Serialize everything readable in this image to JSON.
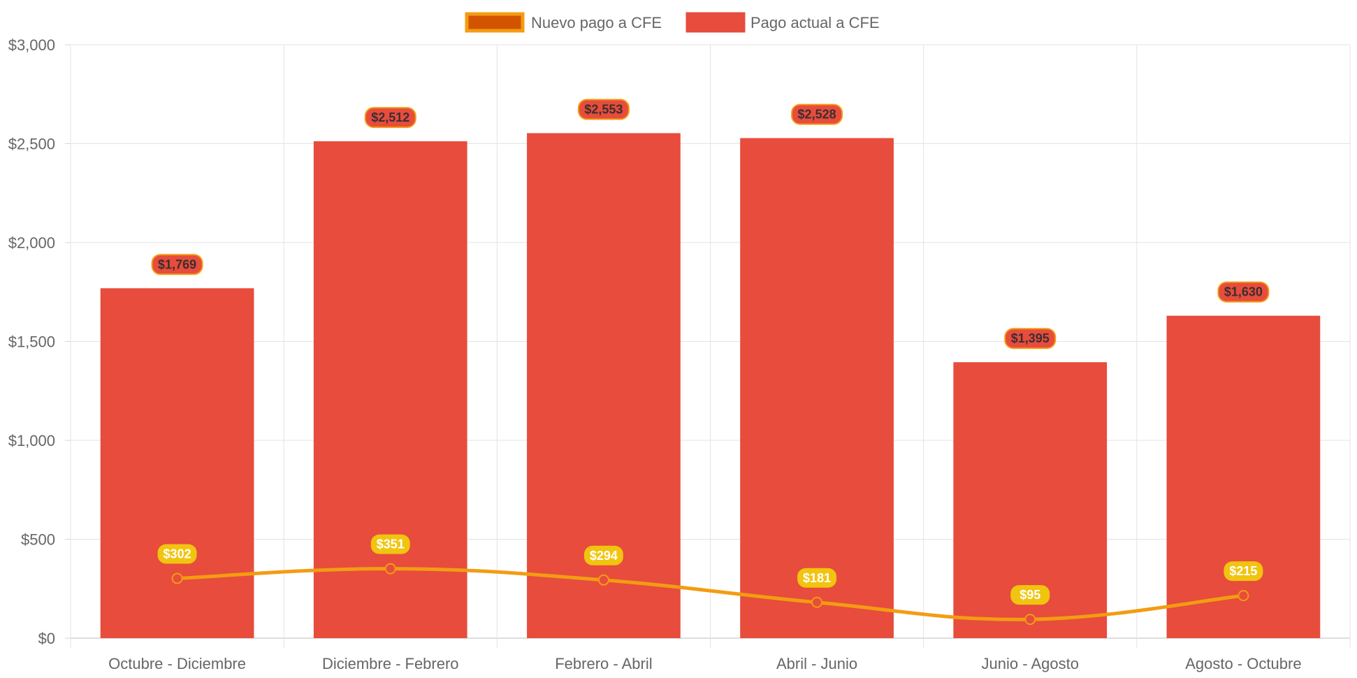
{
  "chart_data": {
    "type": "bar",
    "categories": [
      "Octubre - Diciembre",
      "Diciembre - Febrero",
      "Febrero - Abril",
      "Abril - Junio",
      "Junio - Agosto",
      "Agosto - Octubre"
    ],
    "series": [
      {
        "name": "Pago actual a CFE",
        "type": "bar",
        "values": [
          1769,
          2512,
          2553,
          2528,
          1395,
          1630
        ],
        "labels": [
          "$1,769",
          "$2,512",
          "$2,553",
          "$2,528",
          "$1,395",
          "$1,630"
        ],
        "color": "#e74c3c",
        "label_bg": "#e74c3c",
        "label_border": "#f39c12"
      },
      {
        "name": "Nuevo pago a CFE",
        "type": "line",
        "values": [
          302,
          351,
          294,
          181,
          95,
          215
        ],
        "labels": [
          "$302",
          "$351",
          "$294",
          "$181",
          "$95",
          "$215"
        ],
        "color": "#f39c12",
        "point_color": "#e74c3c",
        "label_bg": "#f1c40f"
      }
    ],
    "legend": [
      {
        "label": "Nuevo pago a CFE",
        "fill": "#d35400",
        "border": "#f39c12"
      },
      {
        "label": "Pago actual a CFE",
        "fill": "#e74c3c",
        "border": "#e74c3c"
      }
    ],
    "legend_position": "top-center",
    "y_ticks": [
      "$0",
      "$500",
      "$1,000",
      "$1,500",
      "$2,000",
      "$2,500",
      "$3,000"
    ],
    "ylim": [
      0,
      3000
    ],
    "grid": true,
    "title": "",
    "xlabel": "",
    "ylabel": ""
  }
}
